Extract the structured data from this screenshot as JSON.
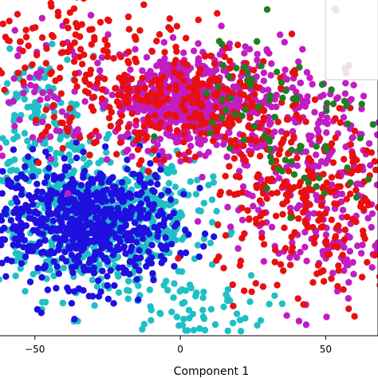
{
  "chart_data": {
    "type": "scatter",
    "xlabel": "Component 1",
    "ylabel": "",
    "xlim": [
      -62,
      68
    ],
    "x_ticks": [
      {
        "value": -50,
        "label": "−50"
      },
      {
        "value": 0,
        "label": "0"
      },
      {
        "value": 50,
        "label": "50"
      }
    ],
    "grid": false,
    "legend": "top-right, mostly cropped, no legible text",
    "series": [
      {
        "color": "#1fbfc6",
        "clusters": [
          {
            "n": 460,
            "center": [
              -30,
              -12
            ],
            "spread": [
              17,
              11
            ]
          },
          {
            "n": 140,
            "center": [
              -50,
              18
            ],
            "spread": [
              10,
              10
            ]
          },
          {
            "n": 110,
            "center": [
              -8,
              -8
            ],
            "spread": [
              12,
              10
            ]
          },
          {
            "n": 70,
            "center": [
              2,
              -38
            ],
            "spread": [
              14,
              6
            ]
          }
        ]
      },
      {
        "color": "#1f10e0",
        "clusters": [
          {
            "n": 600,
            "center": [
              -30,
              -12
            ],
            "spread": [
              14,
              9
            ]
          },
          {
            "n": 60,
            "center": [
              -55,
              -8
            ],
            "spread": [
              5,
              7
            ]
          }
        ]
      },
      {
        "color": "#c21cc2",
        "clusters": [
          {
            "n": 520,
            "center": [
              0,
              25
            ],
            "spread": [
              11,
              7
            ]
          },
          {
            "n": 240,
            "center": [
              25,
              22
            ],
            "spread": [
              18,
              11
            ]
          },
          {
            "n": 220,
            "center": [
              48,
              -5
            ],
            "spread": [
              14,
              16
            ]
          },
          {
            "n": 70,
            "center": [
              -40,
              28
            ],
            "spread": [
              14,
              10
            ]
          }
        ]
      },
      {
        "color": "#e8100f",
        "clusters": [
          {
            "n": 200,
            "center": [
              5,
              25
            ],
            "spread": [
              14,
              9
            ]
          },
          {
            "n": 260,
            "center": [
              45,
              -8
            ],
            "spread": [
              16,
              16
            ]
          },
          {
            "n": 130,
            "center": [
              -25,
              30
            ],
            "spread": [
              16,
              10
            ]
          },
          {
            "n": 70,
            "center": [
              -45,
              45
            ],
            "spread": [
              12,
              12
            ]
          }
        ]
      },
      {
        "color": "#1f7f1f",
        "clusters": [
          {
            "n": 30,
            "center": [
              20,
              30
            ],
            "spread": [
              12,
              8
            ]
          },
          {
            "n": 55,
            "center": [
              45,
              10
            ],
            "spread": [
              15,
              12
            ]
          }
        ]
      }
    ]
  }
}
